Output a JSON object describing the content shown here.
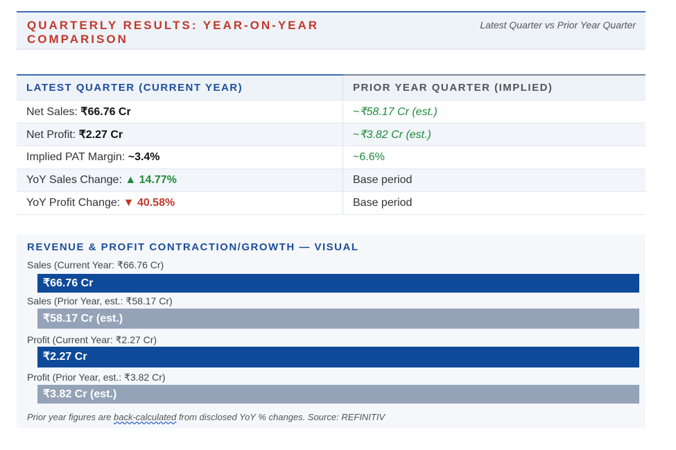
{
  "header": {
    "title": "QUARTERLY RESULTS: YEAR-ON-YEAR COMPARISON",
    "subtitle": "Latest Quarter vs Prior Year Quarter"
  },
  "table": {
    "columns": [
      "LATEST QUARTER (CURRENT YEAR)",
      "PRIOR YEAR QUARTER (IMPLIED)"
    ],
    "rows": [
      {
        "label": "Net Sales: ",
        "value": "₹66.76 Cr",
        "prior": "~₹58.17 Cr (est.)"
      },
      {
        "label": "Net Profit: ",
        "value": "₹2.27 Cr",
        "prior": "~₹3.82 Cr (est.)"
      },
      {
        "label": "Implied PAT Margin: ",
        "value": "~3.4%",
        "prior": "~6.6%"
      },
      {
        "label": "YoY Sales Change: ",
        "value": "▲ 14.77%",
        "prior": "Base period"
      },
      {
        "label": "YoY Profit Change: ",
        "value": "▼ 40.58%",
        "prior": "Base period"
      }
    ]
  },
  "visual": {
    "title": "REVENUE & PROFIT CONTRACTION/GROWTH — VISUAL",
    "bars": [
      {
        "label": "Sales (Current Year: ₹66.76 Cr)",
        "text": "₹66.76 Cr",
        "fill_pct": 100
      },
      {
        "label": "Sales (Prior Year, est.: ₹58.17 Cr)",
        "text": "₹58.17 Cr (est.)",
        "fill_pct": 100
      },
      {
        "label": "Profit (Current Year: ₹2.27 Cr)",
        "text": "₹2.27 Cr",
        "fill_pct": 100
      },
      {
        "label": "Profit (Prior Year, est.: ₹3.82 Cr)",
        "text": "₹3.82 Cr (est.)",
        "fill_pct": 100
      }
    ],
    "note_pre": "Prior year figures are ",
    "note_link": "back-calculated",
    "note_post": " from disclosed YoY % changes. Source: REFINITIV"
  },
  "colors": {
    "current": "#0f4a9a",
    "prior": "#95a3b8",
    "positive": "#1f8a3b",
    "negative": "#c0392b",
    "title": "#c0392b"
  }
}
